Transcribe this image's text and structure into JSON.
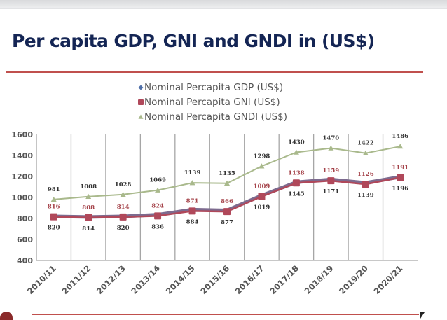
{
  "slide": {
    "title": "Per capita GDP, GNI and GNDI in (US$)"
  },
  "colors": {
    "title": "#142554",
    "rule": "#c0504d",
    "gdp_line": "#7d6b8f",
    "gdp_marker": "#4f6fa8",
    "gni": "#b0485a",
    "gni_label": "#a5434a",
    "gndi": "#a9b98c",
    "gdp_label": "#333333",
    "gndi_label": "#333333",
    "grid": "#a6a6a6"
  },
  "chart_data": {
    "type": "line",
    "title": "",
    "xlabel": "",
    "ylabel": "",
    "ylim": [
      400,
      1600
    ],
    "yticks": [
      400,
      600,
      800,
      1000,
      1200,
      1400,
      1600
    ],
    "grid": "vertical",
    "legend_position": "top-center",
    "categories": [
      "2010/11",
      "2011/12",
      "2012/13",
      "2013/14",
      "2014/15",
      "2015/16",
      "2016/17",
      "2017/18",
      "2018/19",
      "2019/20",
      "2020/21"
    ],
    "series": [
      {
        "name": "Nominal Percapita GDP (US$)",
        "marker": "diamond",
        "label_position": "below",
        "values": [
          820,
          814,
          820,
          836,
          884,
          877,
          1019,
          1145,
          1171,
          1139,
          1196
        ]
      },
      {
        "name": "Nominal Percapita GNI (US$)",
        "marker": "square",
        "label_position": "above",
        "values": [
          816,
          808,
          814,
          824,
          871,
          866,
          1009,
          1138,
          1159,
          1126,
          1191
        ]
      },
      {
        "name": "Nominal Percapita GNDI (US$)",
        "marker": "triangle",
        "label_position": "above",
        "values": [
          981,
          1008,
          1028,
          1069,
          1139,
          1135,
          1298,
          1430,
          1470,
          1422,
          1486
        ]
      }
    ]
  }
}
